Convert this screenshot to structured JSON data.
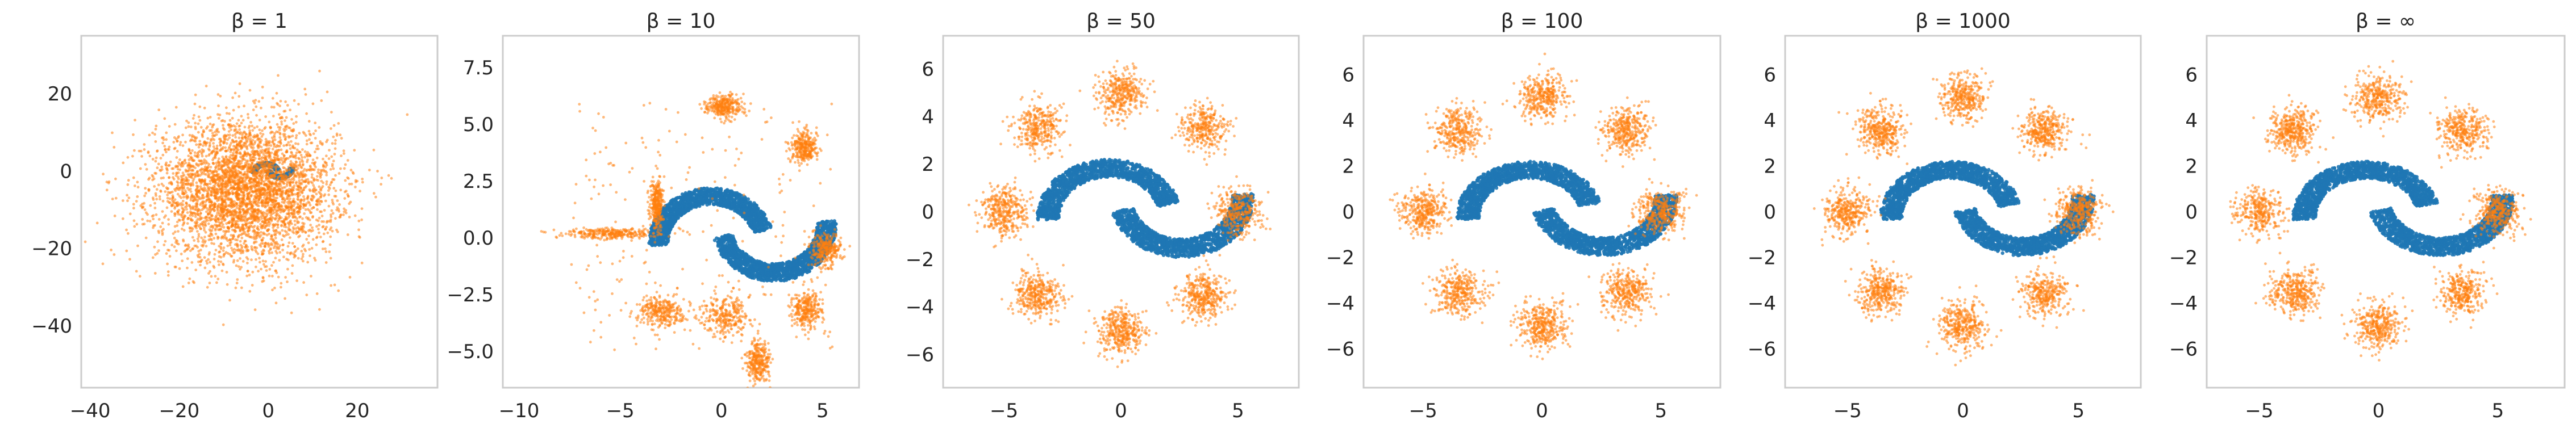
{
  "colors": {
    "target": "#1f77b4",
    "samples": "#ff7f0e",
    "frame": "#cccccc",
    "text": "#262626"
  },
  "chart_data": [
    {
      "type": "scatter",
      "title": "β = 1",
      "grid": false,
      "xlim": [
        -42,
        38
      ],
      "ylim": [
        -56,
        35
      ],
      "xticks": [
        -40,
        -20,
        0,
        20
      ],
      "xtick_labels": [
        "−40",
        "−20",
        "0",
        "20"
      ],
      "yticks": [
        -40,
        -20,
        0,
        20
      ],
      "ytick_labels": [
        "−40",
        "−20",
        "0",
        "20"
      ],
      "series": [
        {
          "role": "target",
          "color": "#1f77b4",
          "shape": "two-moons"
        },
        {
          "role": "samples",
          "color": "#ff7f0e",
          "shape": "gaussian-blob",
          "center": [
            -5,
            -5
          ],
          "spread": [
            10,
            9
          ]
        }
      ]
    },
    {
      "type": "scatter",
      "title": "β = 10",
      "grid": false,
      "xlim": [
        -10.8,
        6.8
      ],
      "ylim": [
        -6.6,
        8.9
      ],
      "xticks": [
        -10,
        -5,
        0,
        5
      ],
      "xtick_labels": [
        "−10",
        "−5",
        "0",
        "5"
      ],
      "yticks": [
        -5.0,
        -2.5,
        0.0,
        2.5,
        5.0,
        7.5
      ],
      "ytick_labels": [
        "−5.0",
        "−2.5",
        "0.0",
        "2.5",
        "5.0",
        "7.5"
      ],
      "series": [
        {
          "role": "target",
          "color": "#1f77b4",
          "shape": "two-moons"
        },
        {
          "role": "samples",
          "color": "#ff7f0e",
          "shape": "partial-mixture",
          "clusters": [
            [
              0.2,
              5.8
            ],
            [
              4.1,
              4.0
            ],
            [
              -3.2,
              1.5
            ],
            [
              -5.5,
              0.2
            ],
            [
              -3.0,
              -3.2
            ],
            [
              0.2,
              -3.4
            ],
            [
              4.2,
              -3.2
            ],
            [
              5.2,
              -0.5
            ],
            [
              1.8,
              -5.5
            ]
          ]
        }
      ]
    },
    {
      "type": "scatter",
      "title": "β = 50",
      "grid": false,
      "xlim": [
        -7.6,
        7.6
      ],
      "ylim": [
        -7.4,
        7.4
      ],
      "xticks": [
        -5,
        0,
        5
      ],
      "xtick_labels": [
        "−5",
        "0",
        "5"
      ],
      "yticks": [
        -6,
        -4,
        -2,
        0,
        2,
        4,
        6
      ],
      "ytick_labels": [
        "−6",
        "−4",
        "−2",
        "0",
        "2",
        "4",
        "6"
      ],
      "series": [
        {
          "role": "target",
          "color": "#1f77b4",
          "shape": "two-moons"
        },
        {
          "role": "samples",
          "color": "#ff7f0e",
          "shape": "ring-of-8-gaussians",
          "radius": 5
        }
      ]
    },
    {
      "type": "scatter",
      "title": "β = 100",
      "grid": false,
      "xlim": [
        -7.5,
        7.5
      ],
      "ylim": [
        -7.7,
        7.7
      ],
      "xticks": [
        -5,
        0,
        5
      ],
      "xtick_labels": [
        "−5",
        "0",
        "5"
      ],
      "yticks": [
        -6,
        -4,
        -2,
        0,
        2,
        4,
        6
      ],
      "ytick_labels": [
        "−6",
        "−4",
        "−2",
        "0",
        "2",
        "4",
        "6"
      ],
      "series": [
        {
          "role": "target",
          "color": "#1f77b4",
          "shape": "two-moons"
        },
        {
          "role": "samples",
          "color": "#ff7f0e",
          "shape": "ring-of-8-gaussians",
          "radius": 5
        }
      ]
    },
    {
      "type": "scatter",
      "title": "β = 1000",
      "grid": false,
      "xlim": [
        -7.7,
        7.7
      ],
      "ylim": [
        -7.7,
        7.7
      ],
      "xticks": [
        -5,
        0,
        5
      ],
      "xtick_labels": [
        "−5",
        "0",
        "5"
      ],
      "yticks": [
        -6,
        -4,
        -2,
        0,
        2,
        4,
        6
      ],
      "ytick_labels": [
        "−6",
        "−4",
        "−2",
        "0",
        "2",
        "4",
        "6"
      ],
      "series": [
        {
          "role": "target",
          "color": "#1f77b4",
          "shape": "two-moons"
        },
        {
          "role": "samples",
          "color": "#ff7f0e",
          "shape": "ring-of-8-gaussians",
          "radius": 5
        }
      ]
    },
    {
      "type": "scatter",
      "title": "β = ∞",
      "grid": false,
      "xlim": [
        -7.2,
        7.8
      ],
      "ylim": [
        -7.7,
        7.7
      ],
      "xticks": [
        -5,
        0,
        5
      ],
      "xtick_labels": [
        "−5",
        "0",
        "5"
      ],
      "yticks": [
        -6,
        -4,
        -2,
        0,
        2,
        4,
        6
      ],
      "ytick_labels": [
        "−6",
        "−4",
        "−2",
        "0",
        "2",
        "4",
        "6"
      ],
      "series": [
        {
          "role": "target",
          "color": "#1f77b4",
          "shape": "two-moons"
        },
        {
          "role": "samples",
          "color": "#ff7f0e",
          "shape": "ring-of-8-gaussians",
          "radius": 5
        }
      ]
    }
  ]
}
